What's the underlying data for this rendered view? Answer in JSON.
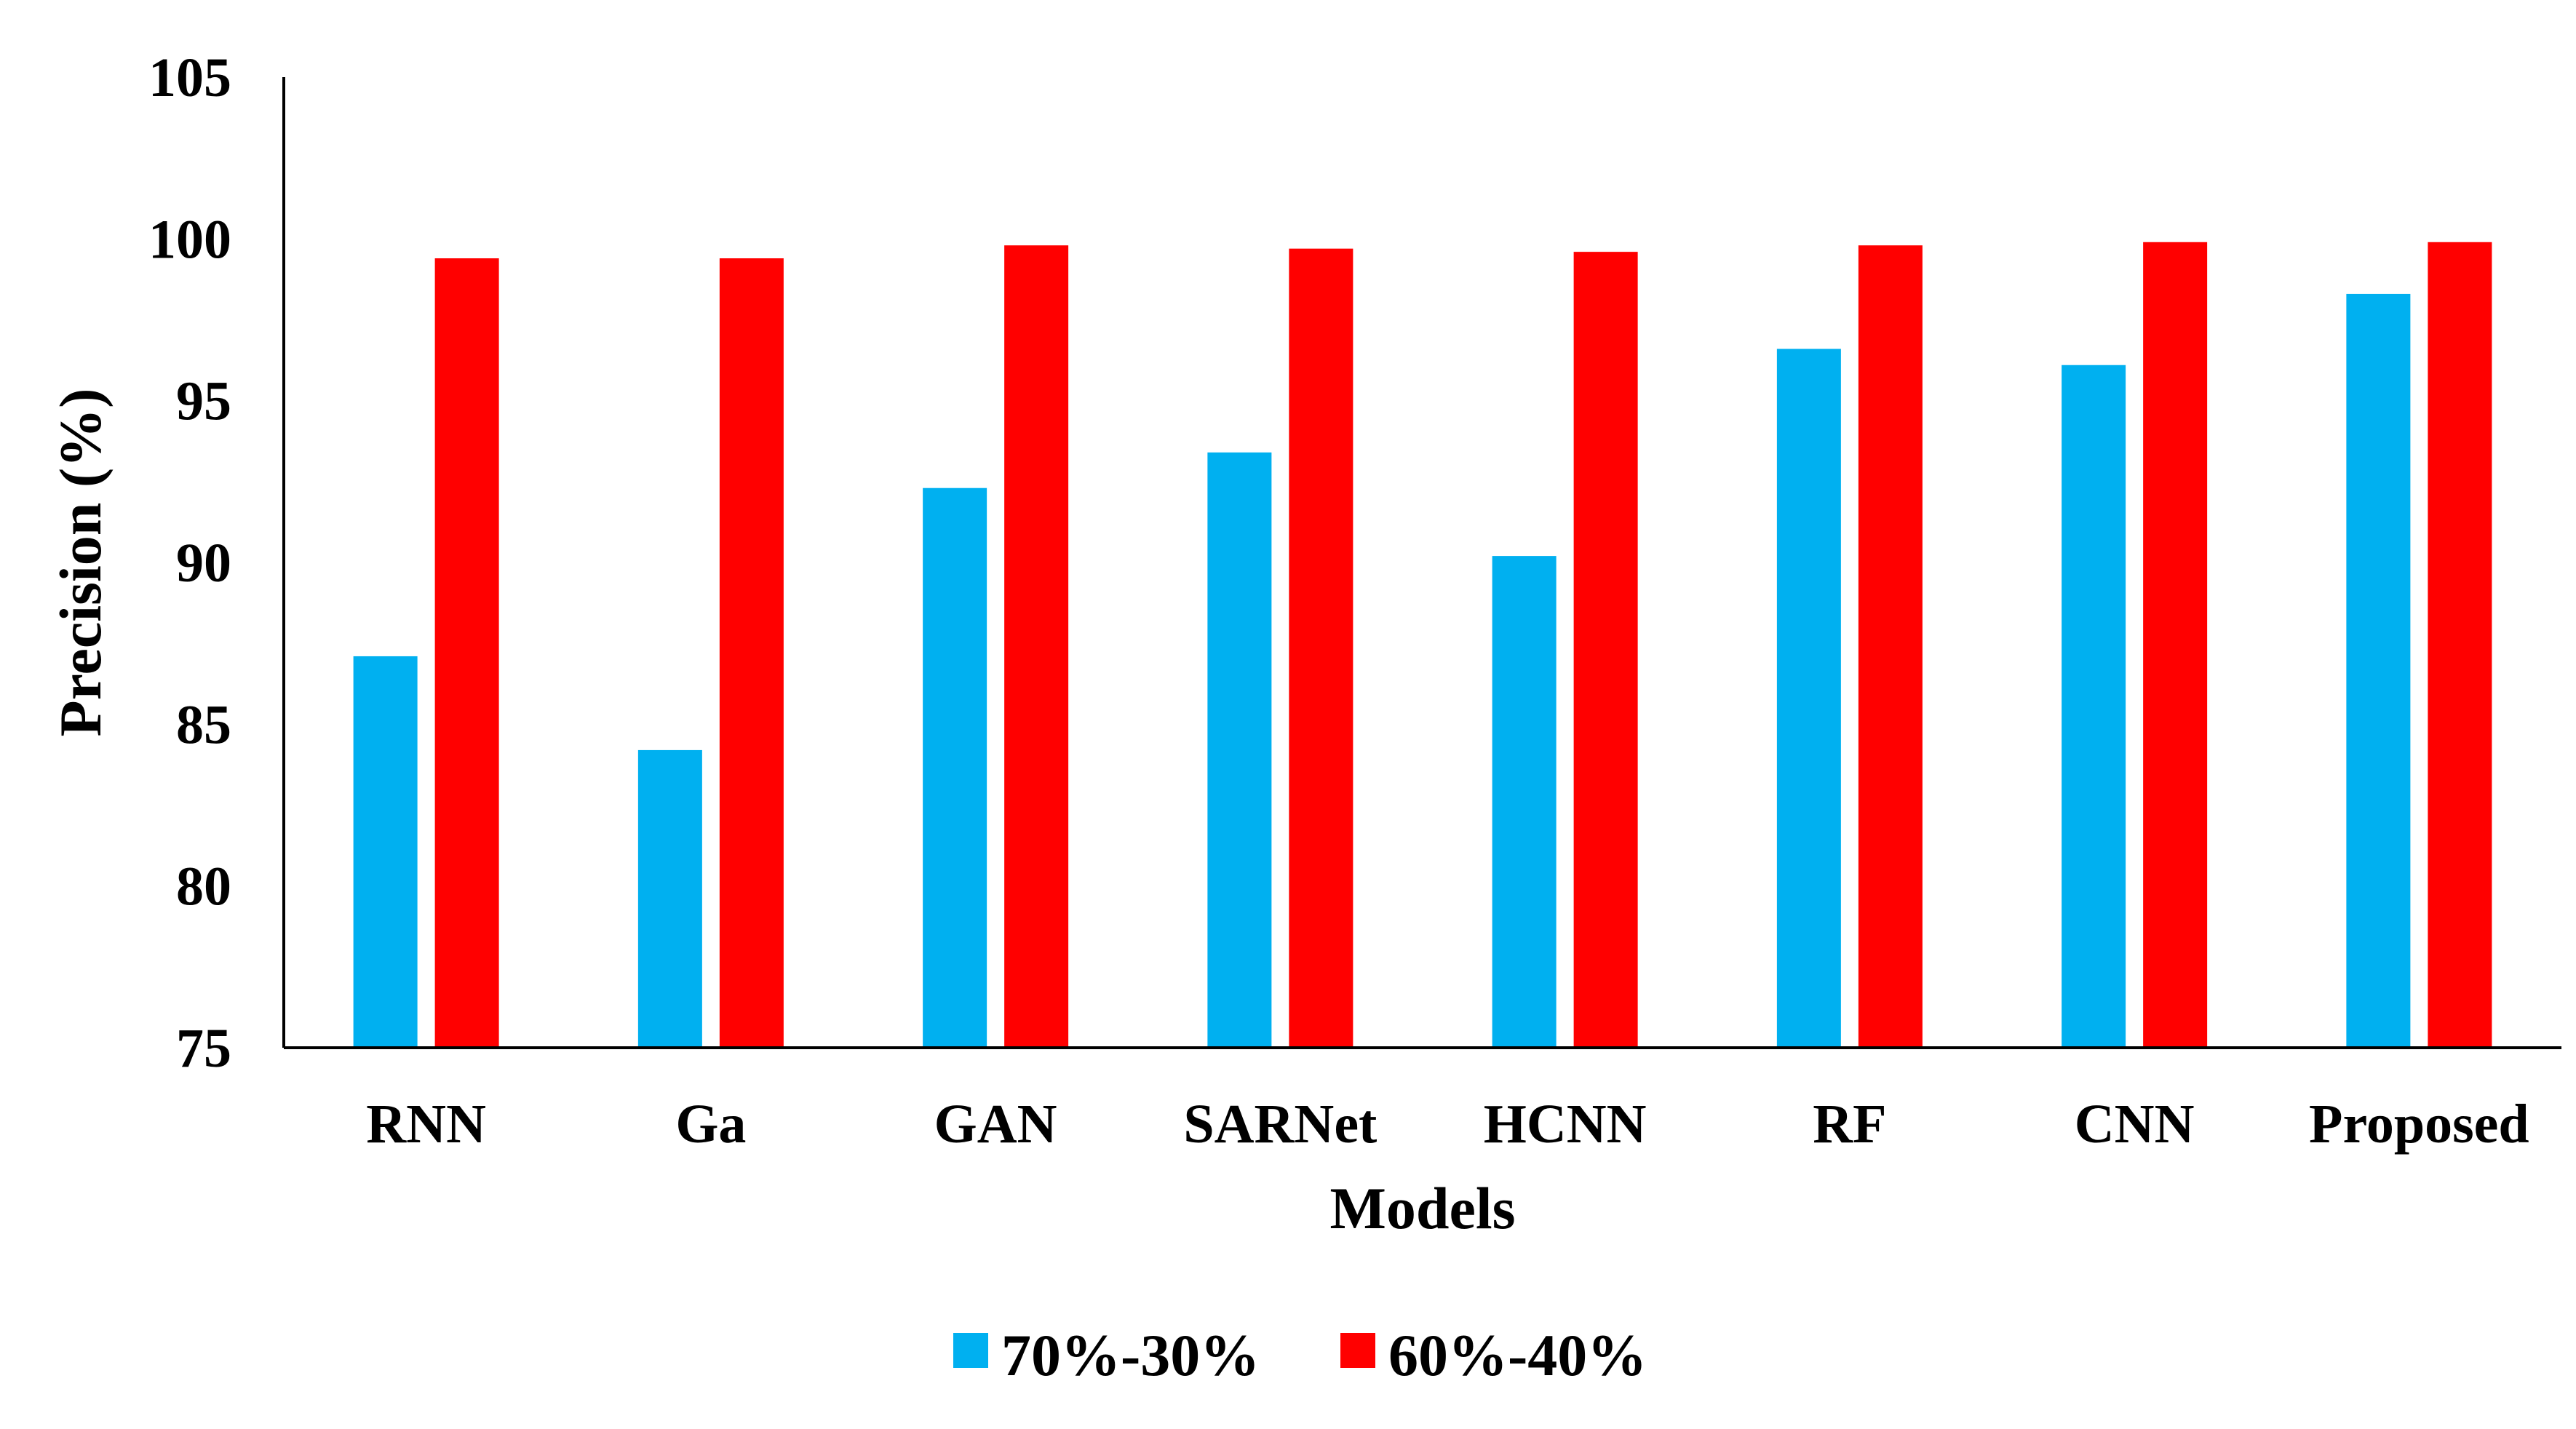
{
  "chart_data": {
    "type": "bar",
    "title": "",
    "xlabel": "Models",
    "ylabel": "Precision (%)",
    "ylim": [
      75,
      105
    ],
    "yticks": [
      75,
      80,
      85,
      90,
      95,
      100,
      105
    ],
    "grid": false,
    "legend_position": "bottom",
    "categories": [
      "RNN",
      "Ga",
      "GAN",
      "SARNet",
      "HCNN",
      "RF",
      "CNN",
      "Proposed"
    ],
    "series": [
      {
        "name": "70%-30%",
        "color": "#00B0F0",
        "values": [
          87.1,
          84.2,
          92.3,
          93.4,
          90.2,
          96.6,
          96.1,
          98.3
        ]
      },
      {
        "name": "60%-40%",
        "color": "#FF0000",
        "values": [
          99.4,
          99.4,
          99.8,
          99.7,
          99.6,
          99.8,
          99.9,
          99.9
        ]
      }
    ]
  }
}
